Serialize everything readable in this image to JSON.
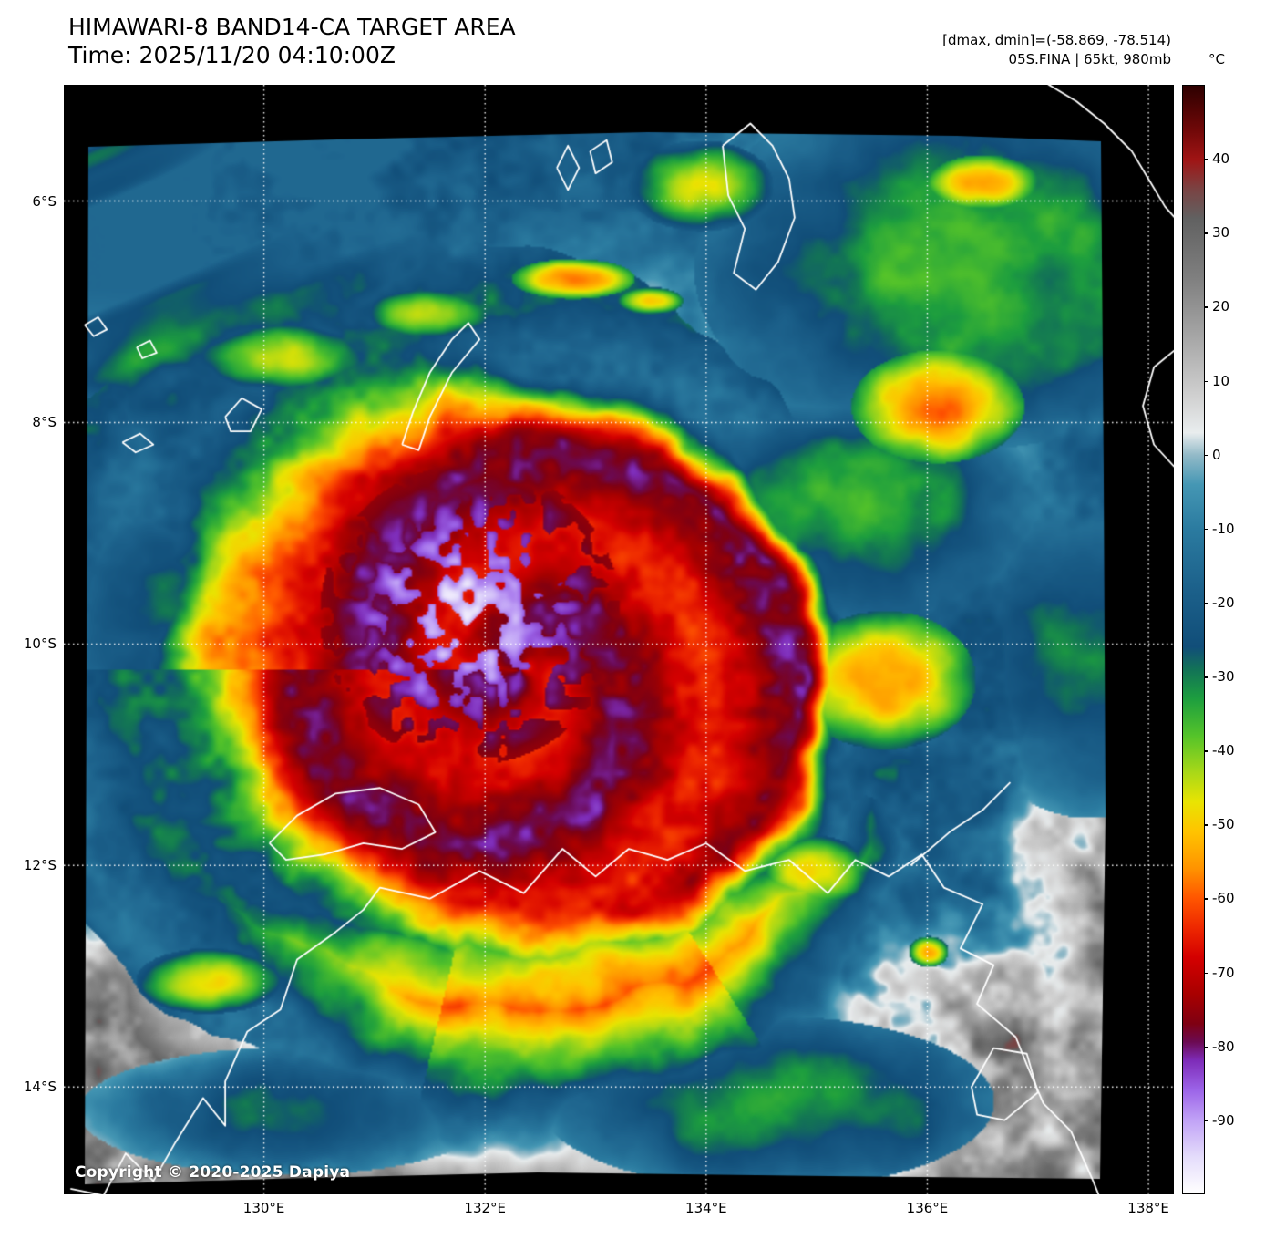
{
  "header": {
    "title": "HIMAWARI-8 BAND14-CA TARGET AREA",
    "time_label": "Time: 2025/11/20 04:10:00Z",
    "dmax_dmin": "[dmax, dmin]=(-58.869, -78.514)",
    "storm_info": "05S.FINA | 65kt, 980mb"
  },
  "colorbar": {
    "unit": "°C",
    "tick_labels": [
      "40",
      "30",
      "20",
      "10",
      "0",
      "-10",
      "-20",
      "-30",
      "-40",
      "-50",
      "-60",
      "-70",
      "-80",
      "-90"
    ],
    "tick_values": [
      40,
      30,
      20,
      10,
      0,
      -10,
      -20,
      -30,
      -40,
      -50,
      -60,
      -70,
      -80,
      -90
    ],
    "range_celsius": [
      -100,
      50
    ],
    "gradient_stops": [
      {
        "t": 50,
        "c": "#2d0000"
      },
      {
        "t": 44,
        "c": "#700808"
      },
      {
        "t": 40,
        "c": "#a01414"
      },
      {
        "t": 36,
        "c": "#7a4343"
      },
      {
        "t": 32,
        "c": "#616161"
      },
      {
        "t": 24,
        "c": "#7f7f7f"
      },
      {
        "t": 16,
        "c": "#a6a6a6"
      },
      {
        "t": 8,
        "c": "#d0d0d0"
      },
      {
        "t": 3,
        "c": "#e9edee"
      },
      {
        "t": 0,
        "c": "#93bac8"
      },
      {
        "t": -4,
        "c": "#4597b4"
      },
      {
        "t": -10,
        "c": "#2b7ba0"
      },
      {
        "t": -18,
        "c": "#1c618b"
      },
      {
        "t": -26,
        "c": "#114e79"
      },
      {
        "t": -29,
        "c": "#127257"
      },
      {
        "t": -33,
        "c": "#1d9e3f"
      },
      {
        "t": -38,
        "c": "#54c32a"
      },
      {
        "t": -43,
        "c": "#a9d818"
      },
      {
        "t": -47,
        "c": "#e9e402"
      },
      {
        "t": -51,
        "c": "#ffc400"
      },
      {
        "t": -56,
        "c": "#ff9300"
      },
      {
        "t": -60,
        "c": "#ff5600"
      },
      {
        "t": -64,
        "c": "#ee2800"
      },
      {
        "t": -68,
        "c": "#d40000"
      },
      {
        "t": -73,
        "c": "#a80000"
      },
      {
        "t": -77,
        "c": "#7f0012"
      },
      {
        "t": -79.5,
        "c": "#6b0a52"
      },
      {
        "t": -82,
        "c": "#7e2cb8"
      },
      {
        "t": -86,
        "c": "#9c64e8"
      },
      {
        "t": -90,
        "c": "#c0a1f6"
      },
      {
        "t": -95,
        "c": "#e4dcfb"
      },
      {
        "t": -100,
        "c": "#ffffff"
      }
    ]
  },
  "axes": {
    "lat_tick_labels": [
      "6°S",
      "8°S",
      "10°S",
      "12°S",
      "14°S"
    ],
    "lat_tick_values_south": [
      6,
      8,
      10,
      12,
      14
    ],
    "lon_tick_labels": [
      "130°E",
      "132°E",
      "134°E",
      "136°E",
      "138°E"
    ],
    "lon_tick_values_east": [
      130,
      132,
      134,
      136,
      138
    ]
  },
  "map": {
    "copyright": "Copyright © 2020-2025 Dapiya",
    "background_color": "#000000",
    "grid_color": "#ffffff",
    "coastline_color": "#ffffff"
  }
}
